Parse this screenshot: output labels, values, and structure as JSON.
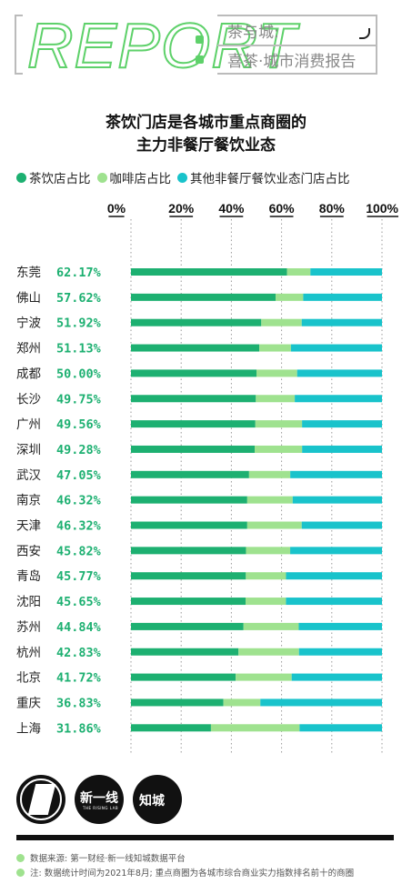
{
  "header": {
    "report": "REPORT",
    "line1": "茶与城:",
    "line2": "喜茶·城市消费报告"
  },
  "title": {
    "line1": "茶饮门店是各城市重点商圈的",
    "line2": "主力非餐厅餐饮业态"
  },
  "colors": {
    "tea": "#1db071",
    "coffee": "#9fe28f",
    "other": "#19c3cb",
    "report_green": "#5ed16a"
  },
  "chart_data": {
    "type": "bar",
    "stacked": true,
    "orientation": "horizontal",
    "categories": [
      "东莞",
      "佛山",
      "宁波",
      "郑州",
      "成都",
      "长沙",
      "广州",
      "深圳",
      "武汉",
      "南京",
      "天津",
      "西安",
      "青岛",
      "沈阳",
      "苏州",
      "杭州",
      "北京",
      "重庆",
      "上海"
    ],
    "value_labels": [
      "62.17%",
      "57.62%",
      "51.92%",
      "51.13%",
      "50.00%",
      "49.75%",
      "49.56%",
      "49.28%",
      "47.05%",
      "46.32%",
      "46.32%",
      "45.82%",
      "45.77%",
      "45.65%",
      "44.84%",
      "42.83%",
      "41.72%",
      "36.83%",
      "31.86%"
    ],
    "series": [
      {
        "name": "茶饮店占比",
        "values": [
          62.17,
          57.62,
          51.92,
          51.13,
          50.0,
          49.75,
          49.56,
          49.28,
          47.05,
          46.32,
          46.32,
          45.82,
          45.77,
          45.65,
          44.84,
          42.83,
          41.72,
          36.83,
          31.86
        ]
      },
      {
        "name": "咖啡店占比",
        "values": [
          9.3,
          11.0,
          16.1,
          12.6,
          16.2,
          15.5,
          18.6,
          18.9,
          16.4,
          18.1,
          21.7,
          17.6,
          16.0,
          16.1,
          22.0,
          24.1,
          22.3,
          14.7,
          35.3
        ]
      },
      {
        "name": "其他非餐厅餐饮业态门店占比",
        "values": [
          28.53,
          31.38,
          31.98,
          36.27,
          33.8,
          34.75,
          31.84,
          31.82,
          36.55,
          35.58,
          31.98,
          36.58,
          38.23,
          38.25,
          33.16,
          33.07,
          35.98,
          48.47,
          32.84
        ]
      }
    ],
    "xticks": [
      "0%",
      "20%",
      "40%",
      "60%",
      "80%",
      "100%"
    ],
    "xlim": [
      0,
      100
    ],
    "grid": true,
    "legend": "top-left"
  },
  "logos": {
    "logo2_text": "新一线",
    "logo2_sub": "THE RISING LAB",
    "logo3_text": "知城"
  },
  "notes": [
    "数据来源: 第一财经·新一线知城数据平台",
    "注: 数据统计时间为2021年8月; 重点商圈为各城市综合商业实力指数排名前十的商圈"
  ]
}
